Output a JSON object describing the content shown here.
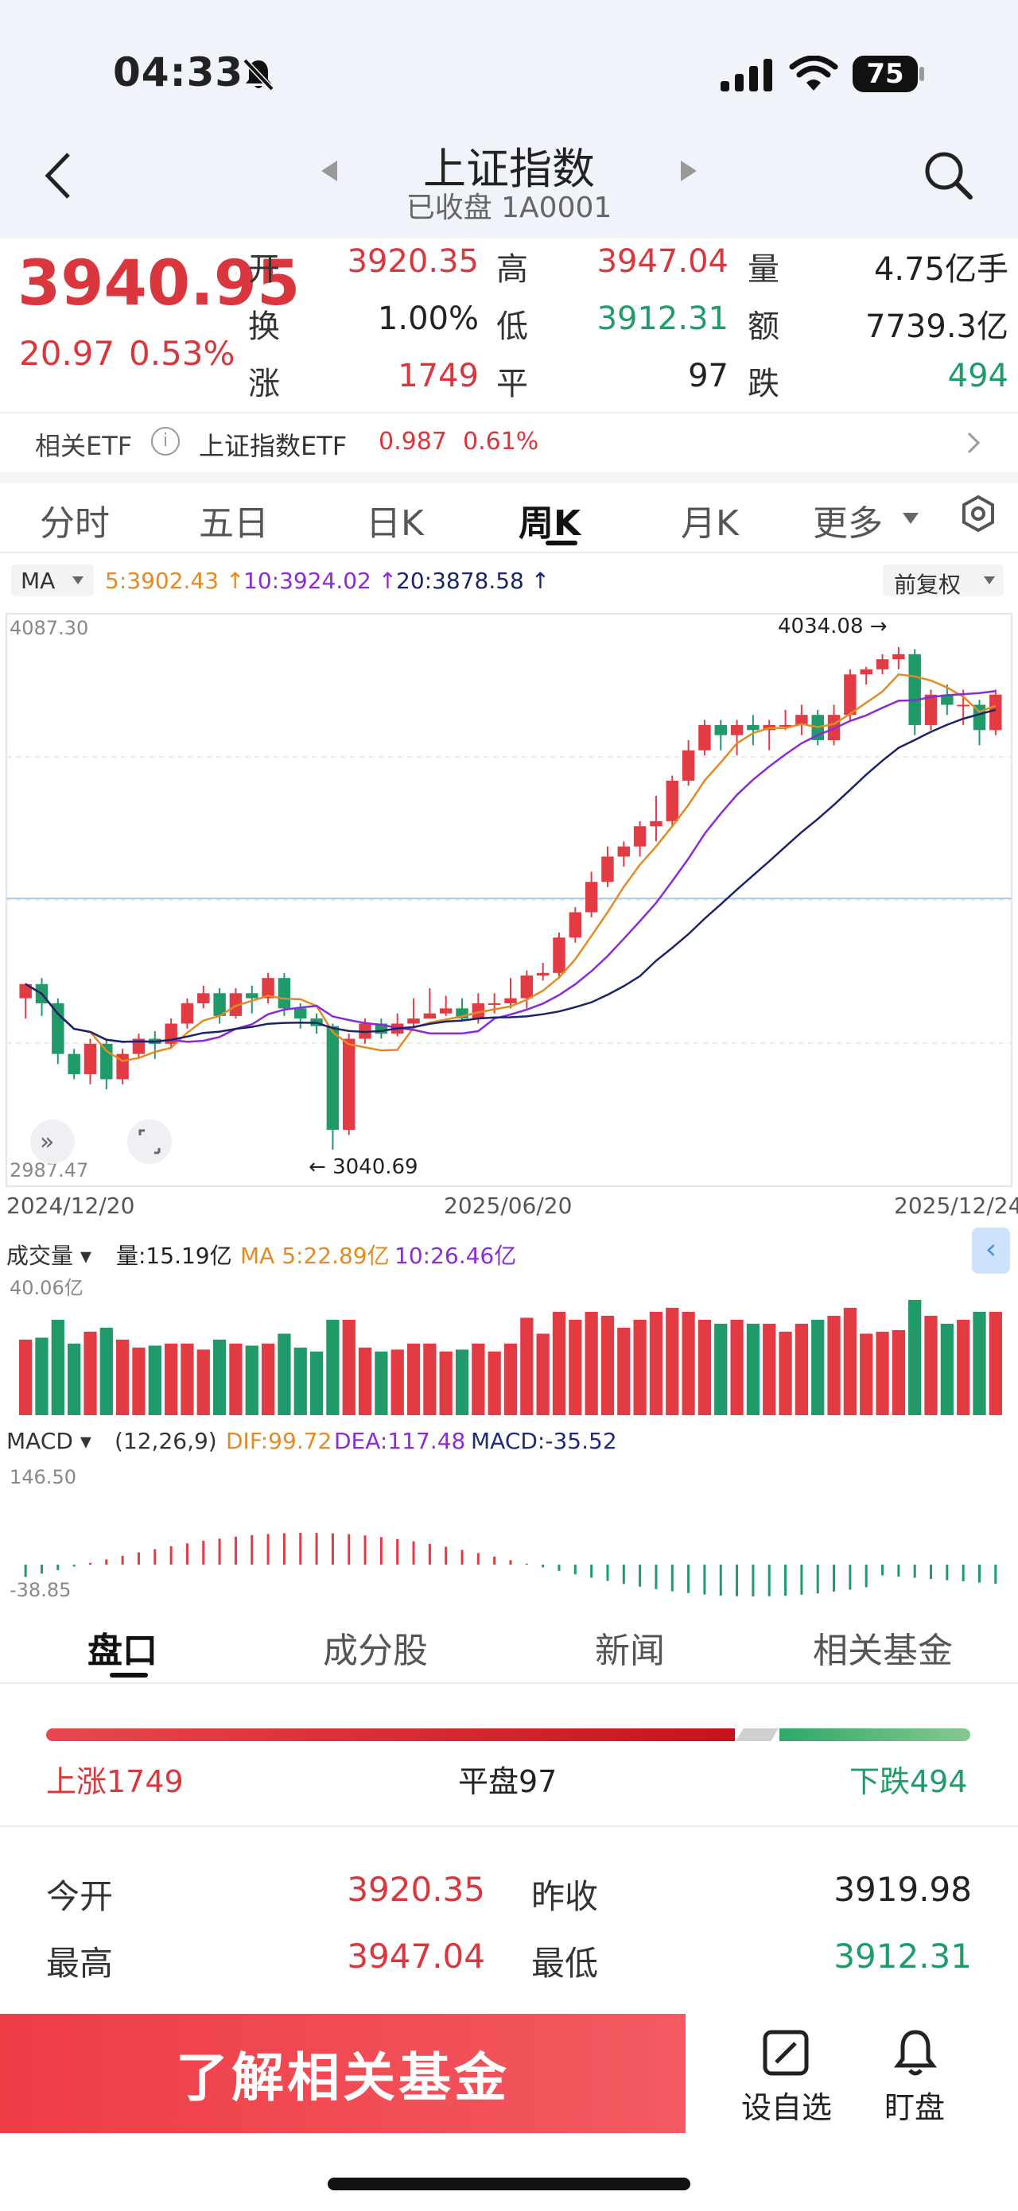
{
  "status": {
    "time": "04:33",
    "battery": "75"
  },
  "header": {
    "title": "上证指数",
    "subtitle": "已收盘 1A0001"
  },
  "quote": {
    "price": "3940.95",
    "change": "20.97",
    "change_pct": "0.53%",
    "open_label": "开",
    "open": "3920.35",
    "high_label": "高",
    "high": "3947.04",
    "volume_label": "量",
    "volume": "4.75亿手",
    "turnover_label": "换",
    "turnover": "1.00%",
    "low_label": "低",
    "low": "3912.31",
    "amount_label": "额",
    "amount": "7739.3亿",
    "up_label": "涨",
    "up": "1749",
    "flat_label": "平",
    "flat": "97",
    "down_label": "跌",
    "down": "494"
  },
  "etf": {
    "label": "相关ETF",
    "name": "上证指数ETF",
    "price": "0.987",
    "pct": "0.61%"
  },
  "chart_tabs": [
    "分时",
    "五日",
    "日K",
    "周K",
    "月K",
    "更多"
  ],
  "ma_row": {
    "label": "MA",
    "ma5": "5:3902.43",
    "ma10": "10:3924.02",
    "ma20": "20:3878.58",
    "adjust": "前复权"
  },
  "chart_data": {
    "type": "candlestick",
    "y_max_label": "4087.30",
    "y_min_label": "2987.47",
    "ylim": [
      2987.47,
      4087.3
    ],
    "x_labels": [
      "2024/12/20",
      "2025/06/20",
      "2025/12/24"
    ],
    "high_annotation": "4034.08",
    "low_annotation": "3040.69",
    "candles": [
      [
        3340,
        3368,
        3300,
        3370
      ],
      [
        3368,
        3330,
        3305,
        3380
      ],
      [
        3330,
        3230,
        3210,
        3340
      ],
      [
        3230,
        3190,
        3180,
        3240
      ],
      [
        3190,
        3250,
        3170,
        3260
      ],
      [
        3250,
        3180,
        3160,
        3260
      ],
      [
        3180,
        3230,
        3170,
        3240
      ],
      [
        3230,
        3260,
        3220,
        3270
      ],
      [
        3260,
        3250,
        3220,
        3275
      ],
      [
        3250,
        3290,
        3240,
        3300
      ],
      [
        3290,
        3330,
        3280,
        3340
      ],
      [
        3330,
        3350,
        3320,
        3365
      ],
      [
        3350,
        3305,
        3290,
        3360
      ],
      [
        3305,
        3350,
        3300,
        3360
      ],
      [
        3350,
        3340,
        3310,
        3365
      ],
      [
        3340,
        3380,
        3330,
        3390
      ],
      [
        3380,
        3320,
        3305,
        3390
      ],
      [
        3320,
        3300,
        3280,
        3330
      ],
      [
        3300,
        3285,
        3270,
        3310
      ],
      [
        3285,
        3080,
        3040.69,
        3290
      ],
      [
        3080,
        3260,
        3070,
        3270
      ],
      [
        3260,
        3290,
        3250,
        3300
      ],
      [
        3290,
        3270,
        3260,
        3300
      ],
      [
        3270,
        3290,
        3265,
        3310
      ],
      [
        3290,
        3300,
        3280,
        3340
      ],
      [
        3300,
        3310,
        3300,
        3360
      ],
      [
        3310,
        3320,
        3305,
        3345
      ],
      [
        3320,
        3300,
        3295,
        3340
      ],
      [
        3300,
        3330,
        3290,
        3350
      ],
      [
        3330,
        3330,
        3310,
        3350
      ],
      [
        3330,
        3340,
        3320,
        3380
      ],
      [
        3340,
        3385,
        3320,
        3395
      ],
      [
        3385,
        3390,
        3375,
        3410
      ],
      [
        3390,
        3460,
        3380,
        3470
      ],
      [
        3460,
        3510,
        3450,
        3520
      ],
      [
        3510,
        3570,
        3500,
        3590
      ],
      [
        3570,
        3620,
        3560,
        3640
      ],
      [
        3620,
        3640,
        3600,
        3650
      ],
      [
        3640,
        3680,
        3620,
        3690
      ],
      [
        3680,
        3690,
        3650,
        3740
      ],
      [
        3690,
        3770,
        3680,
        3780
      ],
      [
        3770,
        3830,
        3760,
        3850
      ],
      [
        3830,
        3880,
        3820,
        3890
      ],
      [
        3880,
        3860,
        3830,
        3890
      ],
      [
        3860,
        3880,
        3820,
        3890
      ],
      [
        3880,
        3870,
        3840,
        3900
      ],
      [
        3870,
        3880,
        3830,
        3890
      ],
      [
        3880,
        3880,
        3870,
        3910
      ],
      [
        3880,
        3900,
        3860,
        3920
      ],
      [
        3900,
        3850,
        3840,
        3910
      ],
      [
        3850,
        3900,
        3840,
        3920
      ],
      [
        3900,
        3980,
        3890,
        3990
      ],
      [
        3980,
        3990,
        3960,
        3995
      ],
      [
        3990,
        4010,
        3980,
        4020
      ],
      [
        4010,
        4020,
        3990,
        4034.08
      ],
      [
        4020,
        3880,
        3860,
        4030
      ],
      [
        3880,
        3940,
        3870,
        3950
      ],
      [
        3940,
        3920,
        3900,
        3960
      ],
      [
        3920,
        3920,
        3880,
        3950
      ],
      [
        3920,
        3870,
        3840,
        3930
      ],
      [
        3870,
        3940,
        3860,
        3950
      ]
    ]
  },
  "volume": {
    "label": "成交量",
    "total": "量:15.19亿",
    "ma5": "MA 5:22.89亿",
    "ma10": "10:26.46亿",
    "max_label": "40.06亿"
  },
  "macd": {
    "label": "MACD",
    "params": "(12,26,9)",
    "dif": "DIF:99.72",
    "dea": "DEA:117.48",
    "macd": "MACD:-35.52",
    "max_label": "146.50",
    "min_label": "-38.85"
  },
  "info_tabs": [
    "盘口",
    "成分股",
    "新闻",
    "相关基金"
  ],
  "breadth": {
    "up": "上涨1749",
    "flat": "平盘97",
    "down": "下跌494"
  },
  "pankou": {
    "today_open_label": "今开",
    "today_open": "3920.35",
    "prev_close_label": "昨收",
    "prev_close": "3919.98",
    "high_label": "最高",
    "high": "3947.04",
    "low_label": "最低",
    "low": "3912.31"
  },
  "bottom": {
    "cta": "了解相关基金",
    "add_label": "设自选",
    "watch_label": "盯盘"
  }
}
